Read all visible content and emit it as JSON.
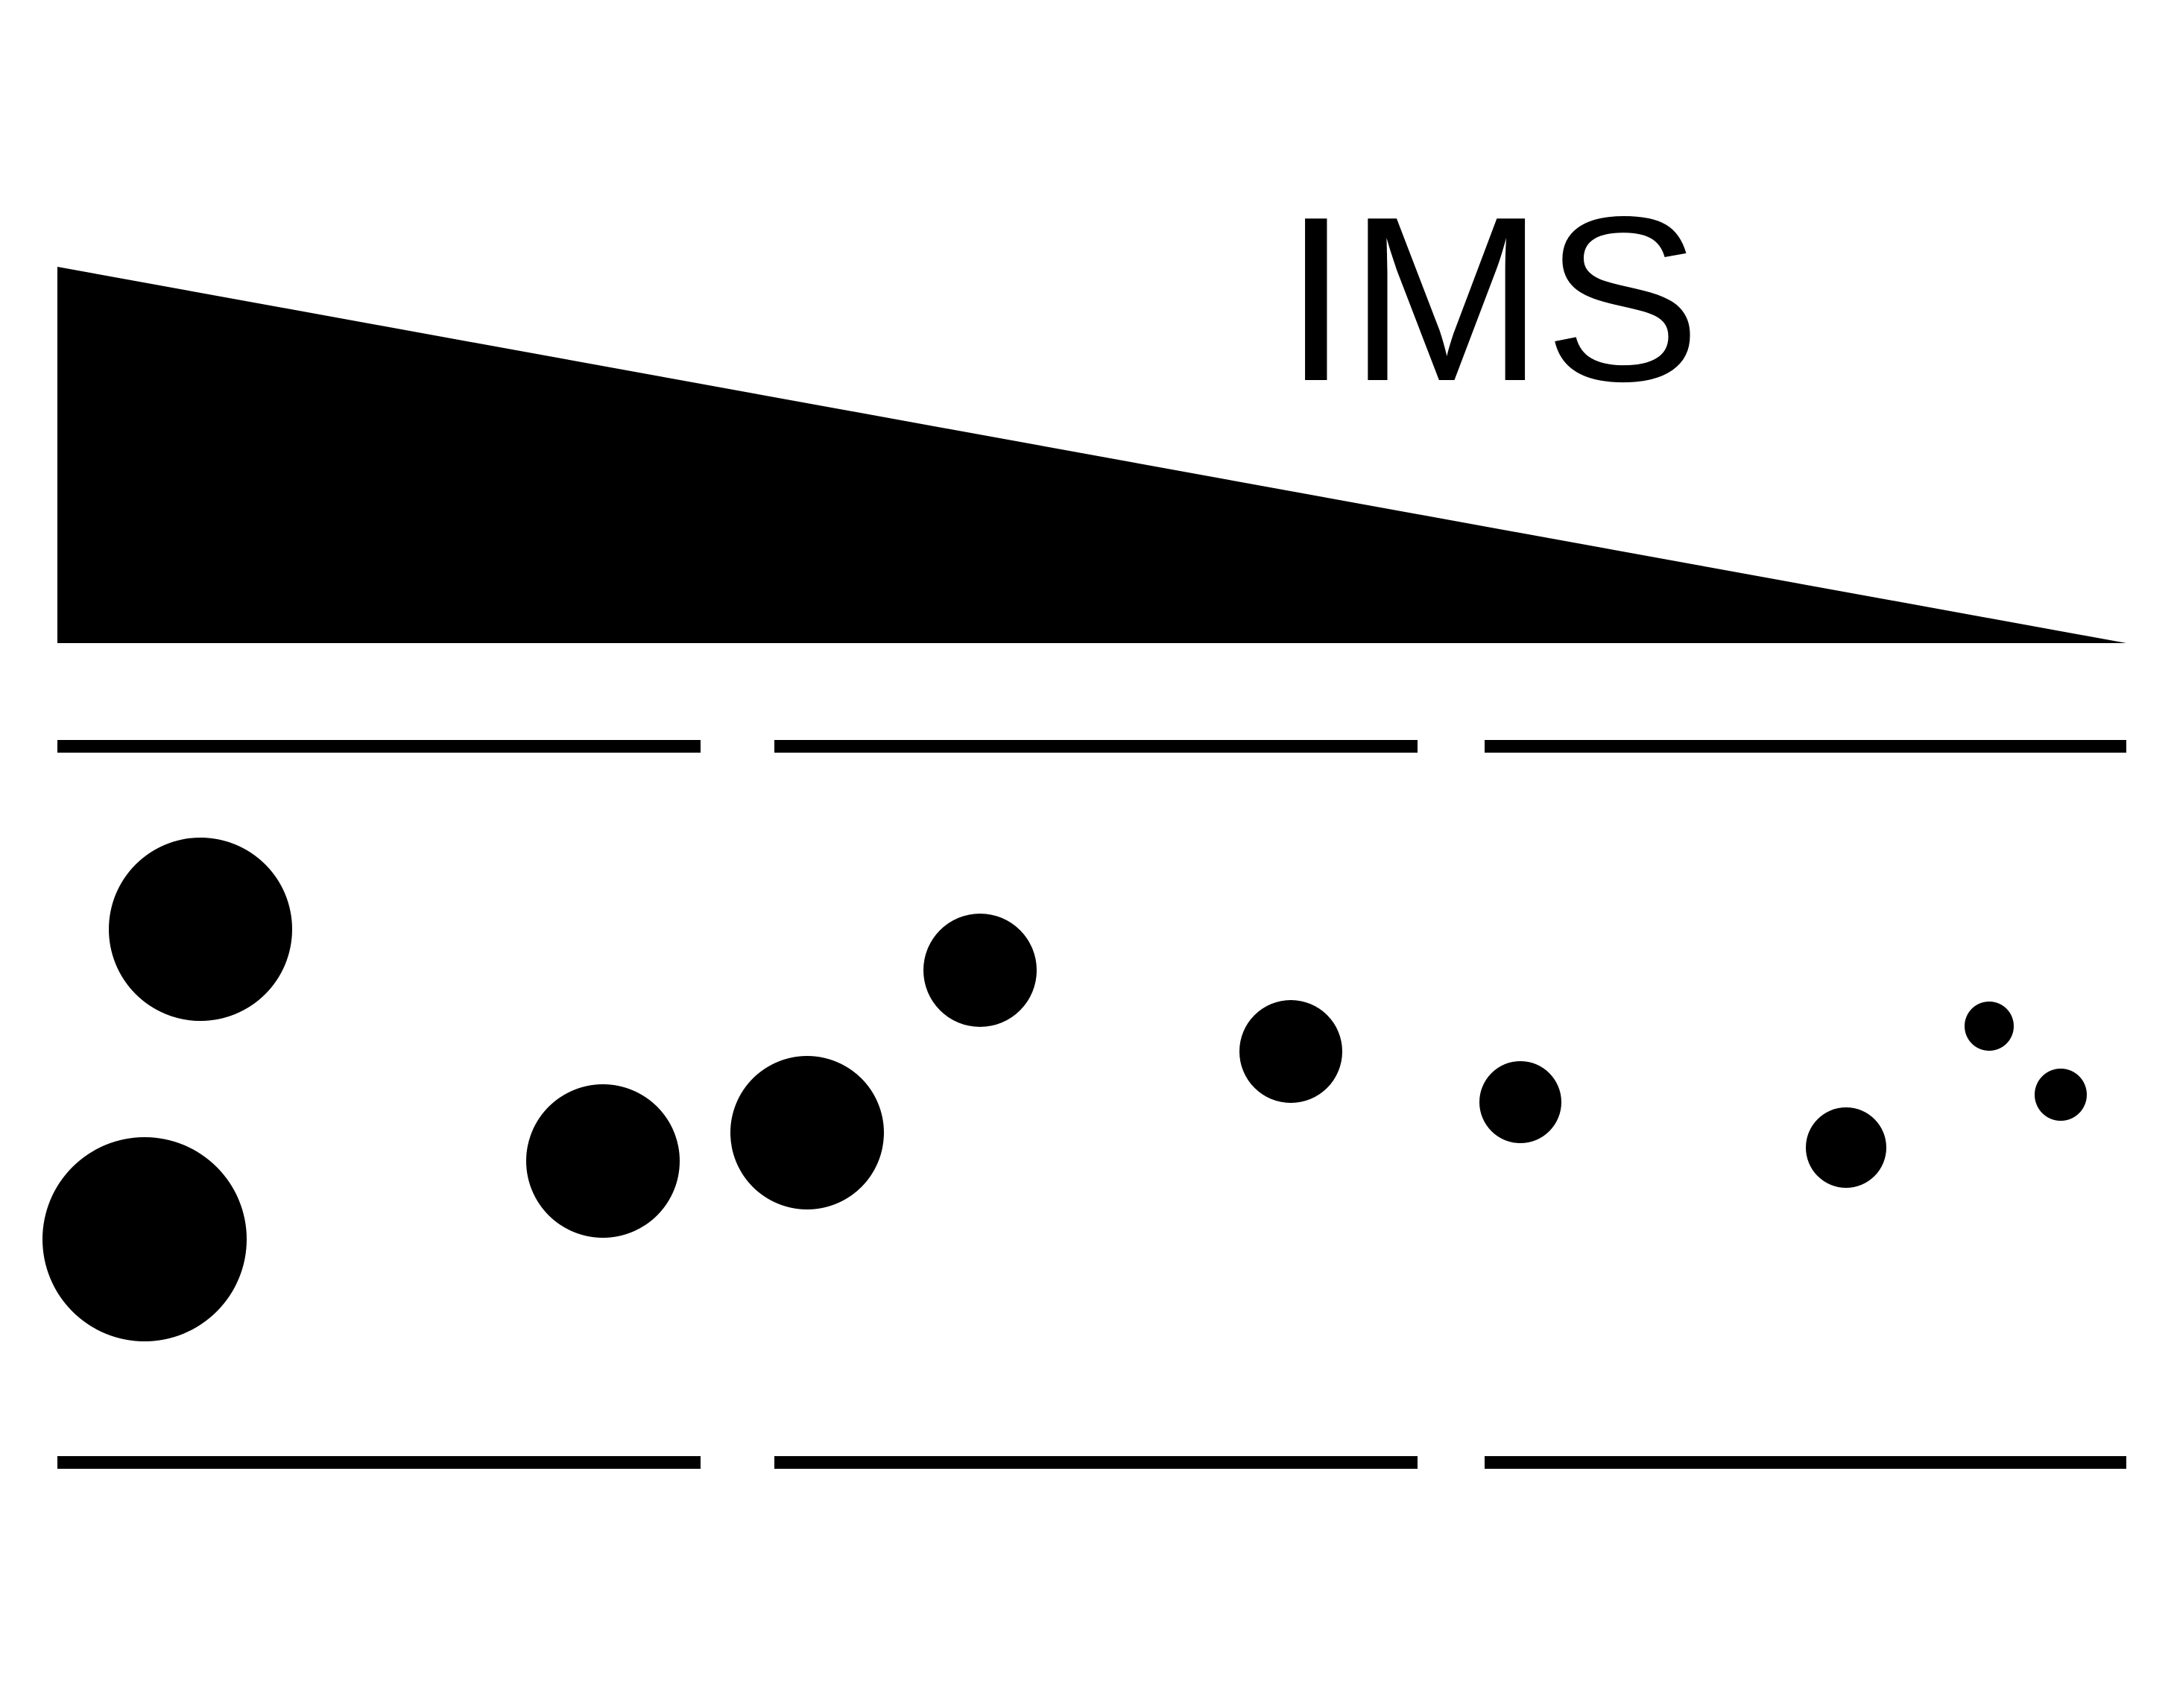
{
  "label": "IMS",
  "colors": {
    "foreground": "#000000",
    "background": "#ffffff"
  }
}
